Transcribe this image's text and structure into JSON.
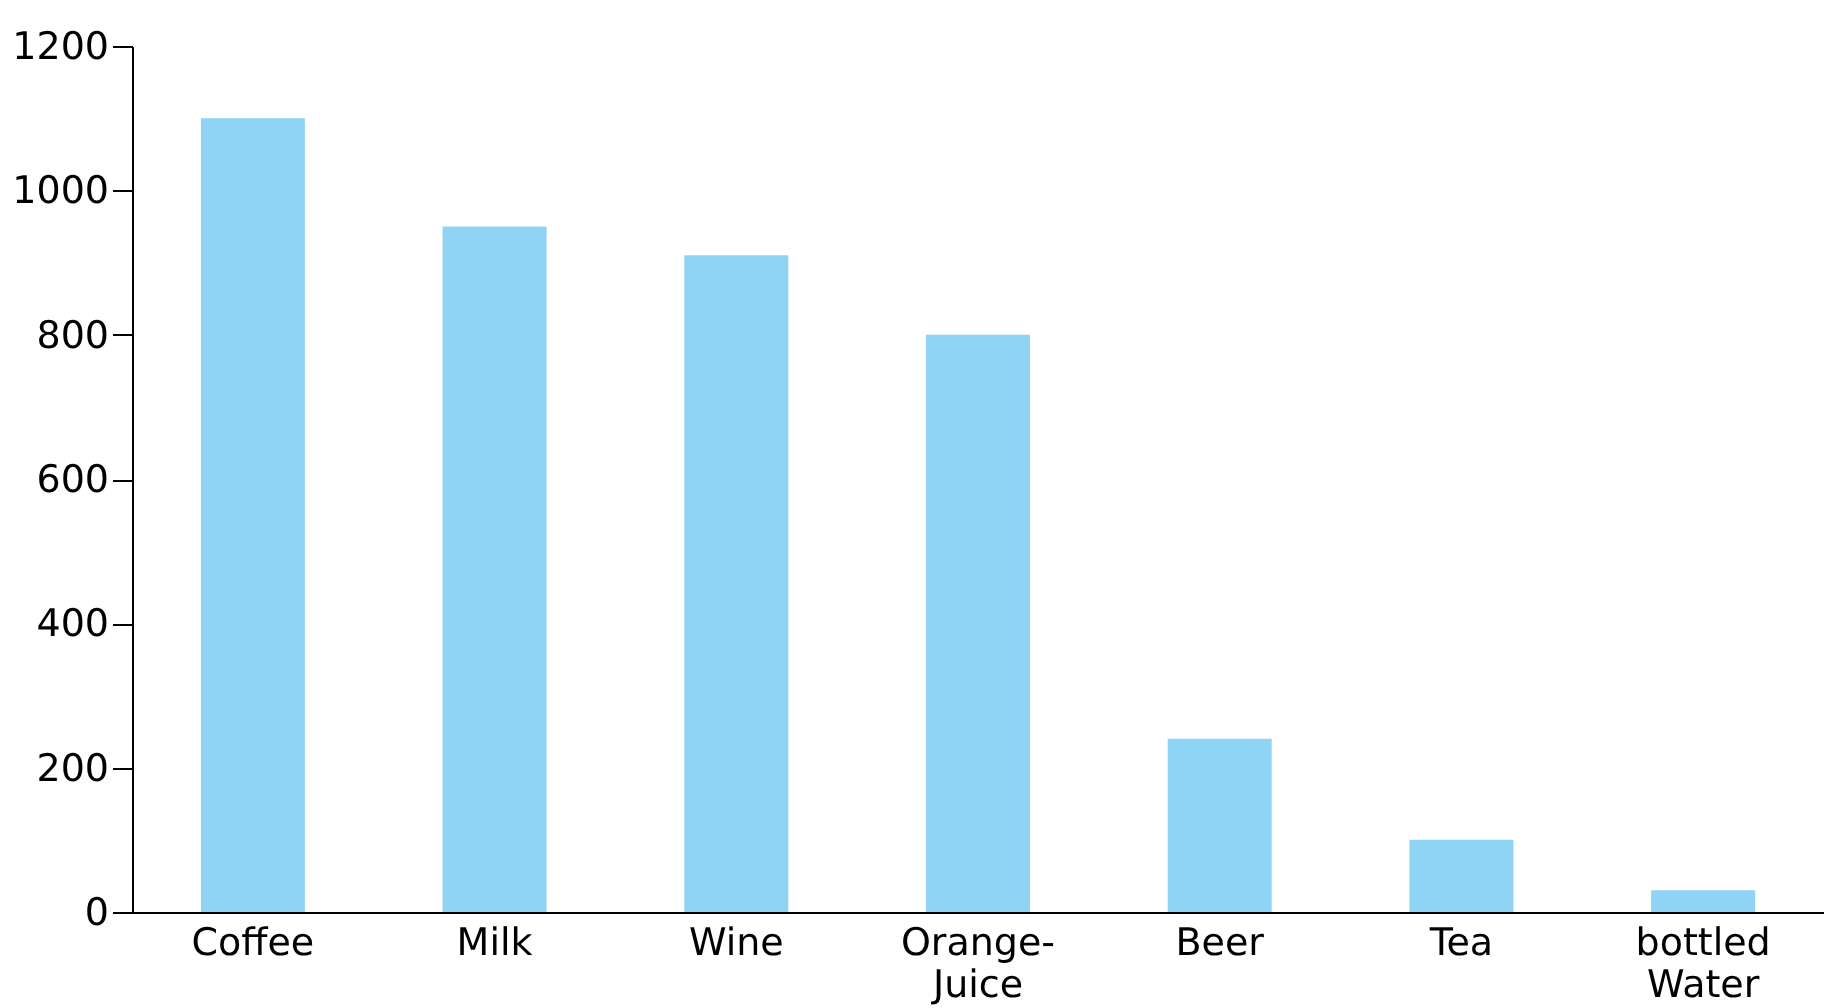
{
  "chart_data": {
    "type": "bar",
    "categories": [
      "Coffee",
      "Milk",
      "Wine",
      "Orange-\nJuice",
      "Beer",
      "Tea",
      "bottled\nWater"
    ],
    "values": [
      1100,
      950,
      910,
      800,
      240,
      100,
      30
    ],
    "color": "#8fd4f5",
    "ylim": [
      0,
      1200
    ],
    "yticks": [
      0,
      200,
      400,
      600,
      800,
      1000,
      1200
    ],
    "grid": false
  }
}
